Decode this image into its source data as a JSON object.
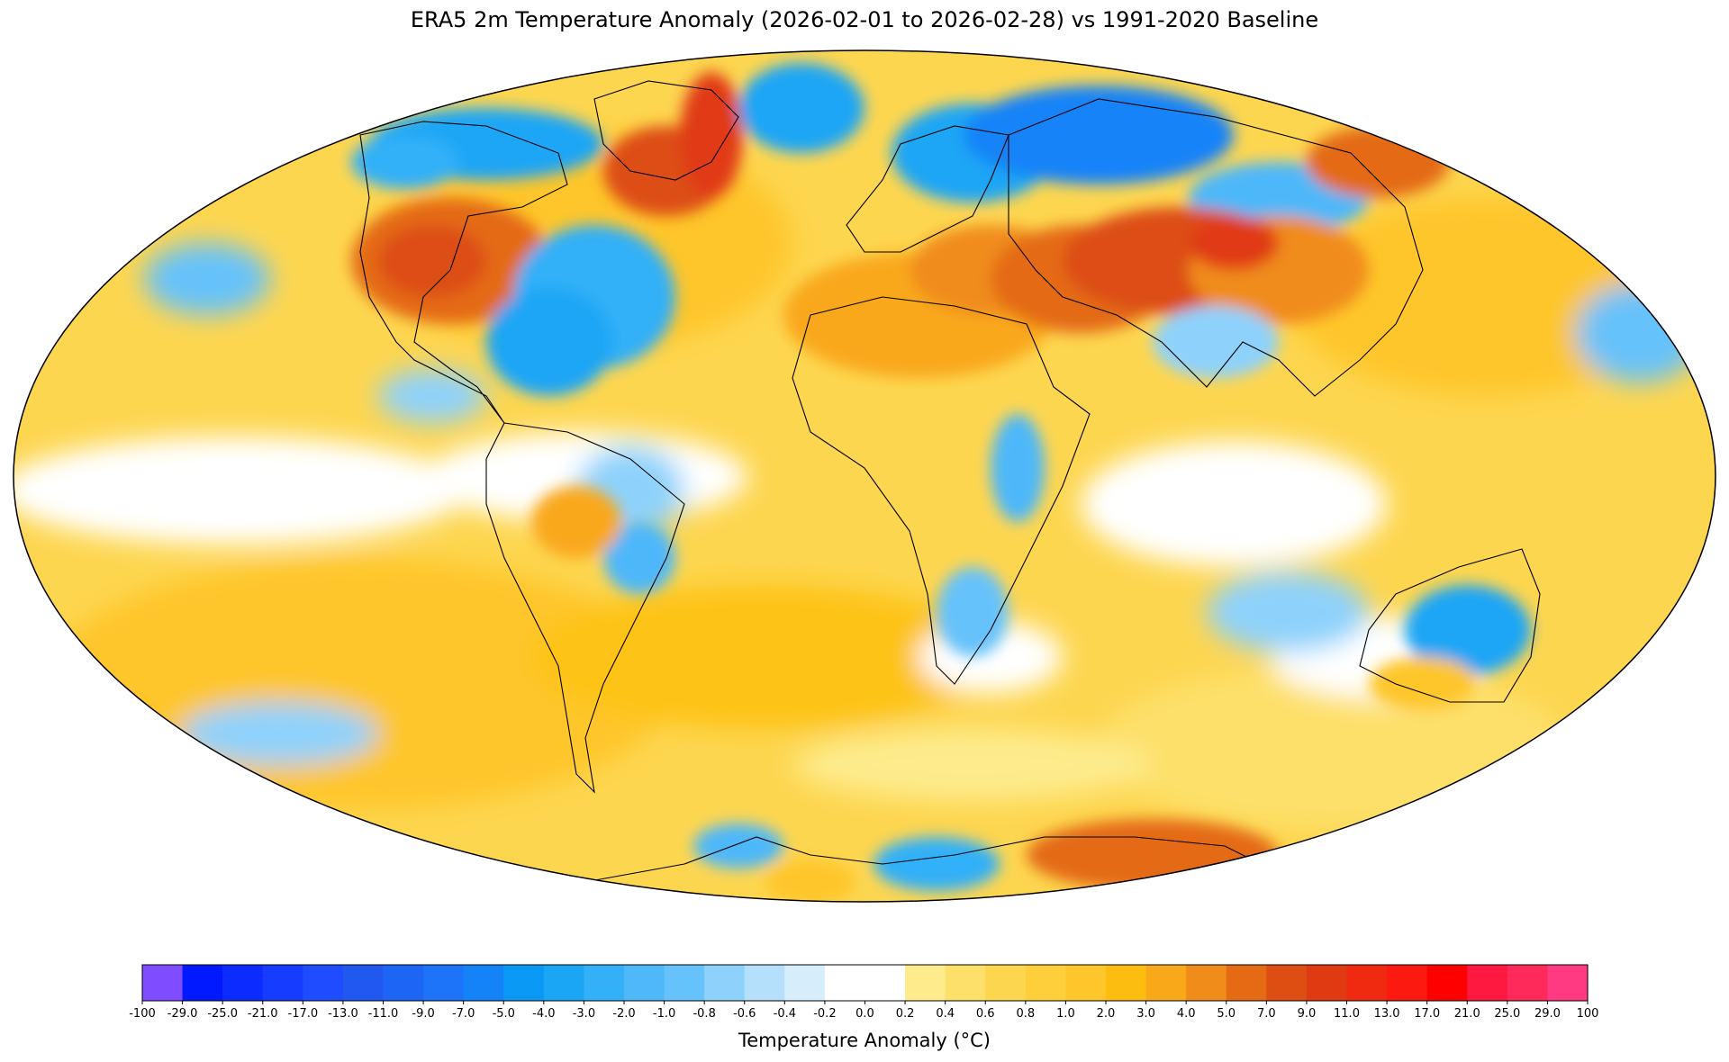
{
  "figure": {
    "title": "ERA5 2m Temperature Anomaly (2026-02-01 to 2026-02-28) vs 1991-2020 Baseline"
  },
  "legend": {
    "title": "Temperature Anomaly (°C)",
    "tick_labels": [
      "-100",
      "-29.0",
      "-25.0",
      "-21.0",
      "-17.0",
      "-13.0",
      "-11.0",
      "-9.0",
      "-7.0",
      "-5.0",
      "-4.0",
      "-3.0",
      "-2.0",
      "-1.0",
      "-0.8",
      "-0.6",
      "-0.4",
      "-0.2",
      "0.0",
      "0.2",
      "0.4",
      "0.6",
      "0.8",
      "1.0",
      "2.0",
      "3.0",
      "4.0",
      "5.0",
      "7.0",
      "9.0",
      "11.0",
      "13.0",
      "17.0",
      "21.0",
      "25.0",
      "29.0",
      "100"
    ],
    "colors": [
      "#7f4cff",
      "#0019ff",
      "#0c2cff",
      "#163cff",
      "#1f4cff",
      "#2058f0",
      "#1d66f5",
      "#1e74f8",
      "#1583f8",
      "#0a9af5",
      "#1aa6f5",
      "#33b0f8",
      "#4eb8f9",
      "#66c2fa",
      "#8ed2fb",
      "#b4e0fc",
      "#d6eefc",
      "#ffffff",
      "#ffffff",
      "#fdeb8c",
      "#fde06a",
      "#fdd650",
      "#fecf3a",
      "#fec62a",
      "#fdbd10",
      "#f9a81a",
      "#f08c1a",
      "#e46a14",
      "#dd4e12",
      "#e03a12",
      "#ef2a10",
      "#fc1a10",
      "#ff0000",
      "#ff1940",
      "#ff2a5a",
      "#ff3a82",
      "#ff4ab0"
    ]
  },
  "map": {
    "projection": "mollweide",
    "regions": [
      {
        "name": "north-america-west-warm",
        "value": 5.0
      },
      {
        "name": "north-america-east-cold",
        "value": -3.0
      },
      {
        "name": "greenland-canada-arctic-cold",
        "value": -4.0
      },
      {
        "name": "labrador-sea-warm",
        "value": 7.0
      },
      {
        "name": "scandinavia-russia-cold",
        "value": -4.0
      },
      {
        "name": "north-africa-middle-east-warm",
        "value": 3.0
      },
      {
        "name": "central-asia-warm",
        "value": 5.0
      },
      {
        "name": "australia-cold",
        "value": -3.0
      },
      {
        "name": "antarctica-east-warm",
        "value": 7.0
      },
      {
        "name": "antarctic-peninsula-cold",
        "value": -3.0
      },
      {
        "name": "east-africa-cold",
        "value": -2.0
      },
      {
        "name": "tropical-pacific-neutral",
        "value": 0.0
      }
    ]
  }
}
